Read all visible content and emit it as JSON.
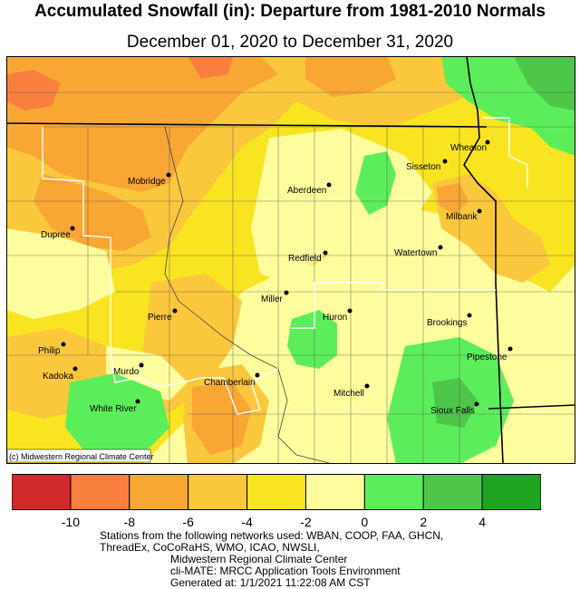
{
  "title": "Accumulated Snowfall (in): Departure from 1981-2010 Normals",
  "subtitle": "December 01, 2020 to December 31, 2020",
  "copyright": "(c) Midwestern Regional Climate Center",
  "legend": {
    "colors": [
      "#d22a2a",
      "#f97f3f",
      "#f8a634",
      "#fbc73d",
      "#f8e421",
      "#fdfd9e",
      "#5cee5a",
      "#4ec64a",
      "#1ea421"
    ],
    "labels": [
      "-10",
      "-8",
      "-6",
      "-4",
      "-2",
      "0",
      "2",
      "4"
    ]
  },
  "cities": [
    {
      "name": "Mobridge"
    },
    {
      "name": "Aberdeen"
    },
    {
      "name": "Sisseton"
    },
    {
      "name": "Wheaton"
    },
    {
      "name": "Milbank"
    },
    {
      "name": "Dupree"
    },
    {
      "name": "Redfield"
    },
    {
      "name": "Watertown"
    },
    {
      "name": "Miller"
    },
    {
      "name": "Pierre"
    },
    {
      "name": "Huron"
    },
    {
      "name": "Brookings"
    },
    {
      "name": "Philip"
    },
    {
      "name": "Kadoka"
    },
    {
      "name": "Murdo"
    },
    {
      "name": "Chamberlain"
    },
    {
      "name": "Pipestone"
    },
    {
      "name": "Mitchell"
    },
    {
      "name": "White River"
    },
    {
      "name": "Sioux Falls"
    }
  ],
  "footer": {
    "line1": "Stations from the following networks used: WBAN, COOP, FAA, GHCN,",
    "line2": "ThreadEx, CoCoRaHS, WMO, ICAO, NWSLI,",
    "line3": "Midwestern Regional Climate Center",
    "line4": "cli-MATE: MRCC Application Tools Environment",
    "line5": "Generated at: 1/1/2021 11:22:08 AM CST"
  }
}
